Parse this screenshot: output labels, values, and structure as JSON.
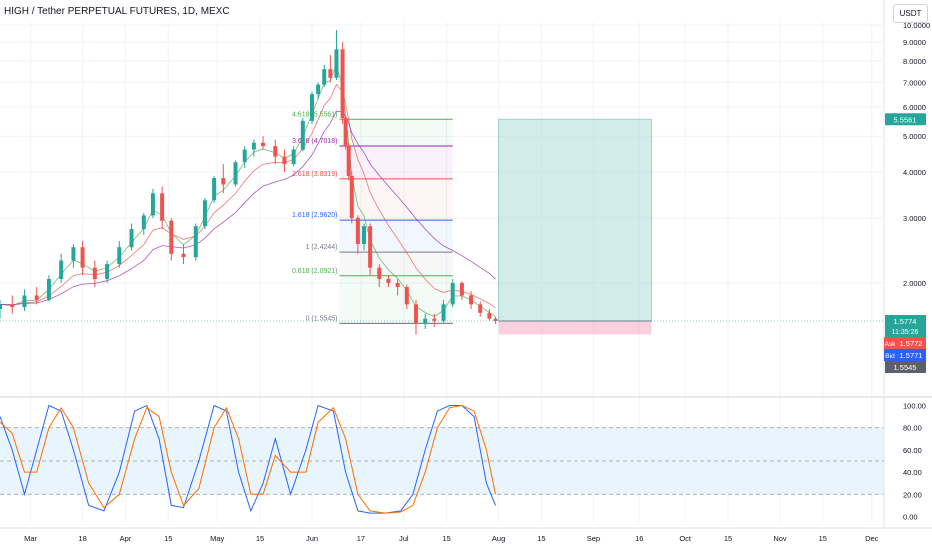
{
  "header": {
    "title": "HIGH / Tether PERPETUAL FUTURES, 1D, MEXC",
    "currency": "USDT"
  },
  "colors": {
    "up": "#26a69a",
    "down": "#ef5350",
    "target_zone": "#b2dfdb",
    "stop_zone": "#f8bbd0",
    "stoch_k": "#2962ff",
    "stoch_d": "#ff6d00",
    "stoch_band": "#e3f2fd",
    "ma_fast": "#4caf50",
    "ma_mid": "#ef5350",
    "ma_slow": "#9c27b0"
  },
  "chart_data": [
    {
      "type": "candlestick",
      "symbol": "HIGH / Tether PERPETUAL FUTURES",
      "timeframe": "1D",
      "exchange": "MEXC",
      "y_ticks": [
        "10.0000",
        "9.0000",
        "8.0000",
        "7.0000",
        "6.0000",
        "5.0000",
        "4.0000",
        "3.0000",
        "2.0000"
      ],
      "y_tick_values": [
        10,
        9,
        8,
        7,
        6,
        5,
        4,
        3,
        2
      ],
      "ylim": [
        1.0,
        10.2
      ],
      "x_ticks": [
        "Mar",
        "18",
        "Apr",
        "15",
        "May",
        "15",
        "Jun",
        "17",
        "Jul",
        "15",
        "Aug",
        "15",
        "Sep",
        "16",
        "Oct",
        "15",
        "Nov",
        "15",
        "Dec"
      ],
      "x_tick_dates": [
        "2024-03-01",
        "2024-03-18",
        "2024-04-01",
        "2024-04-15",
        "2024-05-01",
        "2024-05-15",
        "2024-06-01",
        "2024-06-17",
        "2024-07-01",
        "2024-07-15",
        "2024-08-01",
        "2024-08-15",
        "2024-09-01",
        "2024-09-16",
        "2024-10-01",
        "2024-10-15",
        "2024-11-01",
        "2024-11-15",
        "2024-12-01"
      ],
      "xlim": [
        "2024-02-20",
        "2024-12-05"
      ],
      "price_scale": "log",
      "last_price": {
        "label": "1.5774",
        "countdown": "11:35:26",
        "value": 1.5774
      },
      "ask": {
        "label": "Ask",
        "value": "1.5772"
      },
      "bid": {
        "label": "Bid",
        "value": "1.5771"
      },
      "low_mark": {
        "value": "1.5545"
      },
      "target_label": {
        "value": "5.5561",
        "price": 5.5561
      },
      "position_zone": {
        "start": "2024-08-01",
        "end": "2024-09-20",
        "entry": 1.5774,
        "target": 5.5561,
        "stop": 1.45
      },
      "fib_levels": [
        {
          "label": "4.618 (5.5561)",
          "ratio": 4.618,
          "value": 5.5561,
          "color": "#4caf50"
        },
        {
          "label": "3.618 (4.7018)",
          "ratio": 3.618,
          "value": 4.7018,
          "color": "#9c27b0"
        },
        {
          "label": "2.618 (3.8319)",
          "ratio": 2.618,
          "value": 3.8319,
          "color": "#ef5350"
        },
        {
          "label": "1.618 (2.9620)",
          "ratio": 1.618,
          "value": 2.962,
          "color": "#2962ff"
        },
        {
          "label": "1 (2.4244)",
          "ratio": 1,
          "value": 2.4244,
          "color": "#787b86"
        },
        {
          "label": "0.618 (2.0921)",
          "ratio": 0.618,
          "value": 2.0921,
          "color": "#4caf50"
        },
        {
          "label": "0 (1.5545)",
          "ratio": 0,
          "value": 1.5545,
          "color": "#787b86"
        }
      ],
      "fib_range": {
        "start": "2024-06-10",
        "end": "2024-07-17"
      },
      "candles": [
        {
          "date": "2024-02-20",
          "o": 1.7,
          "h": 1.8,
          "l": 1.6,
          "c": 1.75
        },
        {
          "date": "2024-02-24",
          "o": 1.75,
          "h": 1.85,
          "l": 1.65,
          "c": 1.72
        },
        {
          "date": "2024-02-28",
          "o": 1.72,
          "h": 1.92,
          "l": 1.68,
          "c": 1.85
        },
        {
          "date": "2024-03-03",
          "o": 1.85,
          "h": 1.95,
          "l": 1.75,
          "c": 1.8
        },
        {
          "date": "2024-03-07",
          "o": 1.8,
          "h": 2.1,
          "l": 1.78,
          "c": 2.05
        },
        {
          "date": "2024-03-11",
          "o": 2.05,
          "h": 2.4,
          "l": 2.0,
          "c": 2.3
        },
        {
          "date": "2024-03-15",
          "o": 2.3,
          "h": 2.55,
          "l": 2.2,
          "c": 2.5
        },
        {
          "date": "2024-03-18",
          "o": 2.5,
          "h": 2.6,
          "l": 2.1,
          "c": 2.2
        },
        {
          "date": "2024-03-22",
          "o": 2.2,
          "h": 2.3,
          "l": 1.95,
          "c": 2.05
        },
        {
          "date": "2024-03-26",
          "o": 2.05,
          "h": 2.3,
          "l": 2.0,
          "c": 2.25
        },
        {
          "date": "2024-03-30",
          "o": 2.25,
          "h": 2.6,
          "l": 2.2,
          "c": 2.5
        },
        {
          "date": "2024-04-03",
          "o": 2.5,
          "h": 2.9,
          "l": 2.45,
          "c": 2.8
        },
        {
          "date": "2024-04-07",
          "o": 2.8,
          "h": 3.1,
          "l": 2.7,
          "c": 3.05
        },
        {
          "date": "2024-04-10",
          "o": 3.05,
          "h": 3.6,
          "l": 3.0,
          "c": 3.5
        },
        {
          "date": "2024-04-13",
          "o": 3.5,
          "h": 3.65,
          "l": 2.8,
          "c": 2.95
        },
        {
          "date": "2024-04-16",
          "o": 2.95,
          "h": 3.0,
          "l": 2.3,
          "c": 2.4
        },
        {
          "date": "2024-04-20",
          "o": 2.4,
          "h": 2.55,
          "l": 2.25,
          "c": 2.35
        },
        {
          "date": "2024-04-24",
          "o": 2.35,
          "h": 2.9,
          "l": 2.3,
          "c": 2.85
        },
        {
          "date": "2024-04-27",
          "o": 2.85,
          "h": 3.4,
          "l": 2.8,
          "c": 3.35
        },
        {
          "date": "2024-04-30",
          "o": 3.35,
          "h": 3.9,
          "l": 3.3,
          "c": 3.85
        },
        {
          "date": "2024-05-03",
          "o": 3.85,
          "h": 4.2,
          "l": 3.5,
          "c": 3.7
        },
        {
          "date": "2024-05-07",
          "o": 3.7,
          "h": 4.3,
          "l": 3.65,
          "c": 4.25
        },
        {
          "date": "2024-05-10",
          "o": 4.25,
          "h": 4.7,
          "l": 4.1,
          "c": 4.6
        },
        {
          "date": "2024-05-13",
          "o": 4.6,
          "h": 4.9,
          "l": 4.4,
          "c": 4.8
        },
        {
          "date": "2024-05-16",
          "o": 4.8,
          "h": 5.0,
          "l": 4.6,
          "c": 4.7
        },
        {
          "date": "2024-05-20",
          "o": 4.7,
          "h": 4.9,
          "l": 4.2,
          "c": 4.4
        },
        {
          "date": "2024-05-23",
          "o": 4.4,
          "h": 4.6,
          "l": 4.0,
          "c": 4.2
        },
        {
          "date": "2024-05-26",
          "o": 4.2,
          "h": 4.7,
          "l": 4.15,
          "c": 4.6
        },
        {
          "date": "2024-05-29",
          "o": 4.6,
          "h": 5.6,
          "l": 4.55,
          "c": 5.5
        },
        {
          "date": "2024-06-01",
          "o": 5.5,
          "h": 6.6,
          "l": 5.4,
          "c": 6.5
        },
        {
          "date": "2024-06-03",
          "o": 6.5,
          "h": 7.0,
          "l": 6.3,
          "c": 6.9
        },
        {
          "date": "2024-06-05",
          "o": 6.9,
          "h": 7.8,
          "l": 6.8,
          "c": 7.6
        },
        {
          "date": "2024-06-07",
          "o": 7.6,
          "h": 8.3,
          "l": 7.0,
          "c": 7.2
        },
        {
          "date": "2024-06-09",
          "o": 7.2,
          "h": 9.7,
          "l": 7.1,
          "c": 8.6
        },
        {
          "date": "2024-06-11",
          "o": 8.6,
          "h": 9.0,
          "l": 5.4,
          "c": 5.6
        },
        {
          "date": "2024-06-12",
          "o": 5.6,
          "h": 5.7,
          "l": 4.6,
          "c": 4.7
        },
        {
          "date": "2024-06-13",
          "o": 4.7,
          "h": 4.8,
          "l": 3.8,
          "c": 3.9
        },
        {
          "date": "2024-06-14",
          "o": 3.9,
          "h": 4.0,
          "l": 2.9,
          "c": 3.0
        },
        {
          "date": "2024-06-16",
          "o": 3.0,
          "h": 3.05,
          "l": 2.4,
          "c": 2.55
        },
        {
          "date": "2024-06-18",
          "o": 2.55,
          "h": 2.9,
          "l": 2.45,
          "c": 2.85
        },
        {
          "date": "2024-06-20",
          "o": 2.85,
          "h": 2.9,
          "l": 2.1,
          "c": 2.2
        },
        {
          "date": "2024-06-23",
          "o": 2.2,
          "h": 2.25,
          "l": 1.95,
          "c": 2.05
        },
        {
          "date": "2024-06-26",
          "o": 2.05,
          "h": 2.1,
          "l": 1.95,
          "c": 2.0
        },
        {
          "date": "2024-06-29",
          "o": 2.0,
          "h": 2.05,
          "l": 1.85,
          "c": 1.95
        },
        {
          "date": "2024-07-02",
          "o": 1.95,
          "h": 1.98,
          "l": 1.7,
          "c": 1.75
        },
        {
          "date": "2024-07-05",
          "o": 1.75,
          "h": 1.8,
          "l": 1.45,
          "c": 1.55
        },
        {
          "date": "2024-07-08",
          "o": 1.55,
          "h": 1.65,
          "l": 1.5,
          "c": 1.6
        },
        {
          "date": "2024-07-11",
          "o": 1.6,
          "h": 1.65,
          "l": 1.52,
          "c": 1.58
        },
        {
          "date": "2024-07-14",
          "o": 1.58,
          "h": 1.8,
          "l": 1.56,
          "c": 1.75
        },
        {
          "date": "2024-07-17",
          "o": 1.75,
          "h": 2.05,
          "l": 1.72,
          "c": 2.0
        },
        {
          "date": "2024-07-20",
          "o": 2.0,
          "h": 2.02,
          "l": 1.8,
          "c": 1.85
        },
        {
          "date": "2024-07-23",
          "o": 1.85,
          "h": 1.9,
          "l": 1.7,
          "c": 1.75
        },
        {
          "date": "2024-07-26",
          "o": 1.75,
          "h": 1.78,
          "l": 1.62,
          "c": 1.66
        },
        {
          "date": "2024-07-29",
          "o": 1.66,
          "h": 1.7,
          "l": 1.58,
          "c": 1.6
        },
        {
          "date": "2024-07-31",
          "o": 1.6,
          "h": 1.62,
          "l": 1.55,
          "c": 1.5774
        }
      ]
    },
    {
      "type": "line",
      "name_hint": "stochastic oscillator",
      "y_ticks": [
        "100.00",
        "80.00",
        "60.00",
        "40.00",
        "20.00",
        "0.00"
      ],
      "y_tick_values": [
        100,
        80,
        60,
        40,
        20,
        0
      ],
      "ylim": [
        -5,
        105
      ],
      "band": [
        20,
        80
      ],
      "midline": 50,
      "series": [
        {
          "key": "k",
          "dates": [
            "2024-02-20",
            "2024-02-24",
            "2024-02-28",
            "2024-03-03",
            "2024-03-07",
            "2024-03-11",
            "2024-03-15",
            "2024-03-20",
            "2024-03-25",
            "2024-03-30",
            "2024-04-04",
            "2024-04-08",
            "2024-04-12",
            "2024-04-16",
            "2024-04-20",
            "2024-04-25",
            "2024-04-30",
            "2024-05-04",
            "2024-05-08",
            "2024-05-12",
            "2024-05-16",
            "2024-05-20",
            "2024-05-25",
            "2024-05-30",
            "2024-06-03",
            "2024-06-08",
            "2024-06-12",
            "2024-06-16",
            "2024-06-20",
            "2024-06-25",
            "2024-06-30",
            "2024-07-04",
            "2024-07-08",
            "2024-07-12",
            "2024-07-16",
            "2024-07-20",
            "2024-07-24",
            "2024-07-28",
            "2024-07-31"
          ],
          "values": [
            90,
            60,
            20,
            60,
            100,
            95,
            60,
            10,
            5,
            40,
            95,
            100,
            70,
            10,
            8,
            50,
            100,
            95,
            40,
            5,
            30,
            70,
            20,
            60,
            100,
            95,
            40,
            5,
            3,
            3,
            5,
            20,
            60,
            95,
            100,
            100,
            90,
            30,
            10
          ]
        },
        {
          "key": "d",
          "dates": [
            "2024-02-20",
            "2024-02-24",
            "2024-02-28",
            "2024-03-03",
            "2024-03-07",
            "2024-03-11",
            "2024-03-15",
            "2024-03-20",
            "2024-03-25",
            "2024-03-30",
            "2024-04-04",
            "2024-04-08",
            "2024-04-12",
            "2024-04-16",
            "2024-04-20",
            "2024-04-25",
            "2024-04-30",
            "2024-05-04",
            "2024-05-08",
            "2024-05-12",
            "2024-05-16",
            "2024-05-20",
            "2024-05-25",
            "2024-05-30",
            "2024-06-03",
            "2024-06-08",
            "2024-06-12",
            "2024-06-16",
            "2024-06-20",
            "2024-06-25",
            "2024-06-30",
            "2024-07-04",
            "2024-07-08",
            "2024-07-12",
            "2024-07-16",
            "2024-07-20",
            "2024-07-24",
            "2024-07-28",
            "2024-07-31"
          ],
          "values": [
            85,
            75,
            40,
            40,
            80,
            98,
            80,
            30,
            8,
            20,
            70,
            98,
            90,
            40,
            10,
            25,
            80,
            98,
            70,
            20,
            20,
            55,
            40,
            40,
            85,
            98,
            70,
            20,
            5,
            3,
            4,
            10,
            40,
            80,
            98,
            100,
            95,
            60,
            20
          ]
        }
      ]
    }
  ]
}
